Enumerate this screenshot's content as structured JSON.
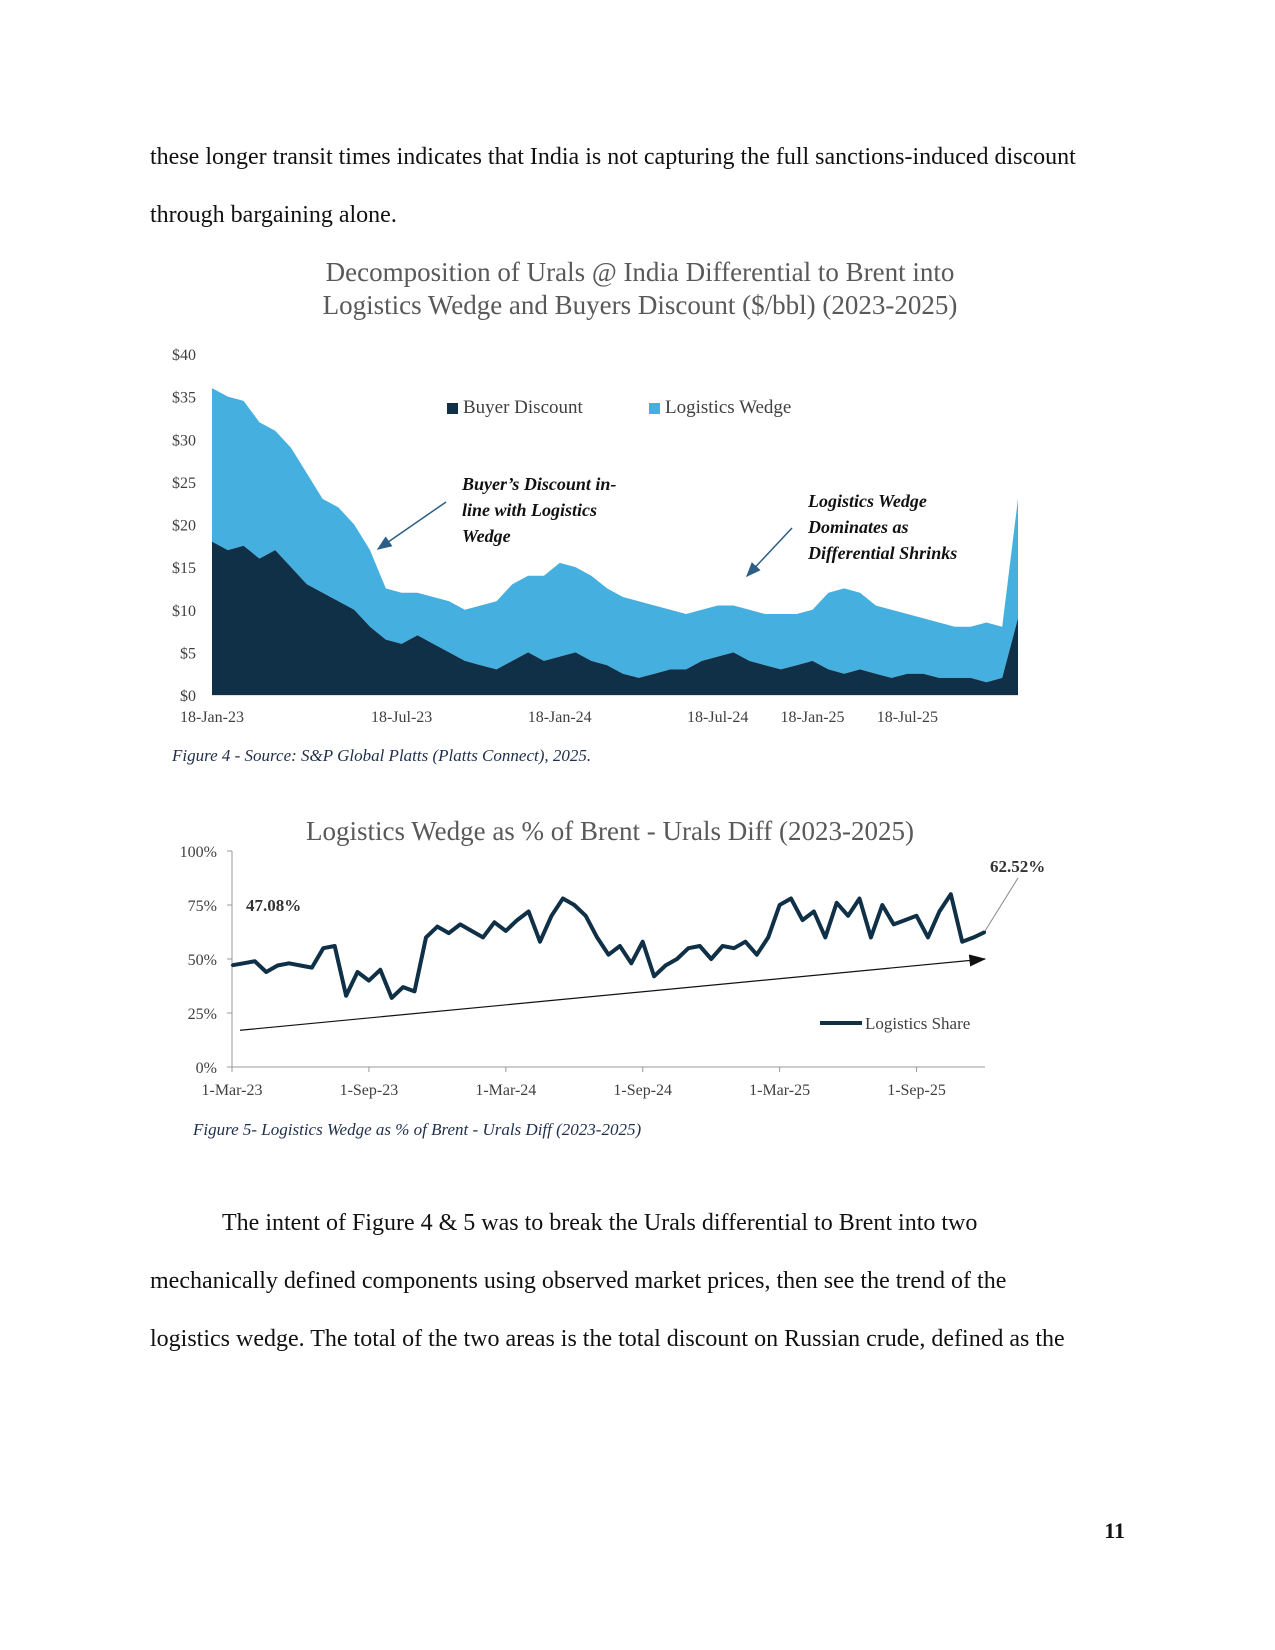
{
  "body_text_top": [
    "these longer transit times indicates that India is not capturing the full sanctions-induced discount",
    "through bargaining alone."
  ],
  "body_text_bottom": [
    "The intent of Figure 4 & 5 was to break the Urals differential to Brent into two",
    "mechanically defined components using observed market prices, then see the trend of the",
    "logistics wedge. The total of the two areas is the total discount on Russian crude, defined as the"
  ],
  "page_number": "11",
  "figure4": {
    "title_line1": "Decomposition of Urals @ India Differential to Brent into",
    "title_line2": "Logistics Wedge and Buyers Discount ($/bbl) (2023-2025)",
    "caption": "Figure 4 - Source: S&P Global Platts (Platts Connect), 2025.",
    "annotation_left": [
      "Buyer’s Discount in-",
      "line with Logistics",
      "Wedge"
    ],
    "annotation_right": [
      "Logistics Wedge",
      "Dominates as",
      "Differential Shrinks"
    ]
  },
  "figure5": {
    "title": "Logistics Wedge as % of Brent - Urals Diff (2023-2025)",
    "caption": "Figure 5- Logistics Wedge as % of Brent - Urals Diff (2023-2025)",
    "start_label": "47.08%",
    "end_label": "62.52%"
  },
  "colors": {
    "buyer_discount": "#0f3046",
    "logistics_wedge": "#45b0e0",
    "line": "#0f3046"
  },
  "chart_data": [
    {
      "type": "area",
      "stacked": true,
      "title": "Decomposition of Urals @ India Differential to Brent into Logistics Wedge and Buyers Discount ($/bbl) (2023-2025)",
      "xlabel": "",
      "ylabel": "",
      "x": [
        "18-Jan-23",
        "1-Feb-23",
        "15-Feb-23",
        "1-Mar-23",
        "15-Mar-23",
        "1-Apr-23",
        "15-Apr-23",
        "1-May-23",
        "15-May-23",
        "1-Jun-23",
        "15-Jun-23",
        "1-Jul-23",
        "18-Jul-23",
        "1-Aug-23",
        "15-Aug-23",
        "1-Sep-23",
        "15-Sep-23",
        "1-Oct-23",
        "15-Oct-23",
        "1-Nov-23",
        "15-Nov-23",
        "1-Dec-23",
        "18-Jan-24",
        "1-Feb-24",
        "15-Feb-24",
        "1-Mar-24",
        "15-Mar-24",
        "1-Apr-24",
        "15-Apr-24",
        "1-May-24",
        "15-May-24",
        "1-Jun-24",
        "18-Jul-24",
        "1-Aug-24",
        "1-Sep-24",
        "1-Oct-24",
        "1-Nov-24",
        "1-Dec-24",
        "18-Jan-25",
        "1-Feb-25",
        "1-Mar-25",
        "1-Apr-25",
        "1-May-25",
        "1-Jun-25",
        "18-Jul-25",
        "1-Aug-25",
        "1-Sep-25",
        "1-Oct-25",
        "1-Nov-25",
        "15-Nov-25",
        "1-Dec-25",
        "15-Dec-25"
      ],
      "series": [
        {
          "name": "Buyer Discount",
          "values": [
            18,
            17,
            17.5,
            16,
            17,
            15,
            13,
            12,
            11,
            10,
            8,
            6.5,
            6,
            7,
            6,
            5,
            4,
            3.5,
            3,
            4,
            5,
            4,
            4.5,
            5,
            4,
            3.5,
            2.5,
            2,
            2.5,
            3,
            3,
            4,
            4.5,
            5,
            4,
            3.5,
            3,
            3.5,
            4,
            3,
            2.5,
            3,
            2.5,
            2,
            2.5,
            2.5,
            2,
            2,
            2,
            1.5,
            2,
            9
          ]
        },
        {
          "name": "Logistics Wedge",
          "values": [
            18,
            18,
            17,
            16,
            14,
            14,
            13,
            11,
            11,
            10,
            9,
            6,
            6,
            5,
            5.5,
            6,
            6,
            7,
            8,
            9,
            9,
            10,
            11,
            10,
            10,
            9,
            9,
            9,
            8,
            7,
            6.5,
            6,
            6,
            5.5,
            6,
            6,
            6.5,
            6,
            6,
            9,
            10,
            9,
            8,
            8,
            7,
            6.5,
            6.5,
            6,
            6,
            7,
            6,
            14
          ]
        }
      ],
      "y_ticks": [
        "$0",
        "$5",
        "$10",
        "$15",
        "$20",
        "$25",
        "$30",
        "$35",
        "$40"
      ],
      "x_ticks": [
        "18-Jan-23",
        "18-Jul-23",
        "18-Jan-24",
        "18-Jul-24",
        "18-Jan-25",
        "18-Jul-25"
      ],
      "ylim": [
        0,
        40
      ],
      "legend": "top"
    },
    {
      "type": "line",
      "title": "Logistics Wedge as % of Brent - Urals Diff (2023-2025)",
      "xlabel": "",
      "ylabel": "",
      "x": [
        "1-Mar-23",
        "15-Mar-23",
        "1-Apr-23",
        "15-Apr-23",
        "1-May-23",
        "15-May-23",
        "1-Jun-23",
        "15-Jun-23",
        "1-Jul-23",
        "15-Jul-23",
        "1-Aug-23",
        "15-Aug-23",
        "1-Sep-23",
        "15-Sep-23",
        "1-Oct-23",
        "15-Oct-23",
        "1-Nov-23",
        "15-Nov-23",
        "1-Dec-23",
        "15-Dec-23",
        "1-Jan-24",
        "15-Jan-24",
        "1-Feb-24",
        "15-Feb-24",
        "1-Mar-24",
        "15-Mar-24",
        "1-Apr-24",
        "15-Apr-24",
        "1-May-24",
        "15-May-24",
        "1-Jun-24",
        "15-Jun-24",
        "1-Jul-24",
        "15-Jul-24",
        "1-Aug-24",
        "15-Aug-24",
        "1-Sep-24",
        "15-Sep-24",
        "1-Oct-24",
        "15-Oct-24",
        "1-Nov-24",
        "15-Nov-24",
        "1-Dec-24",
        "15-Dec-24",
        "1-Jan-25",
        "15-Jan-25",
        "1-Feb-25",
        "15-Feb-25",
        "1-Mar-25",
        "15-Mar-25",
        "1-Apr-25",
        "15-Apr-25",
        "1-May-25",
        "15-May-25",
        "1-Jun-25",
        "15-Jun-25",
        "1-Jul-25",
        "15-Jul-25",
        "1-Aug-25",
        "15-Aug-25",
        "1-Sep-25",
        "15-Sep-25",
        "1-Oct-25",
        "15-Oct-25",
        "1-Nov-25",
        "15-Nov-25",
        "1-Dec-25"
      ],
      "series": [
        {
          "name": "Logistics Share",
          "values": [
            47.08,
            48,
            49,
            44,
            47,
            48,
            47,
            46,
            55,
            56,
            33,
            44,
            40,
            45,
            32,
            37,
            35,
            60,
            65,
            62,
            66,
            63,
            60,
            67,
            63,
            68,
            72,
            58,
            70,
            78,
            75,
            70,
            60,
            52,
            56,
            48,
            58,
            42,
            47,
            50,
            55,
            56,
            50,
            56,
            55,
            58,
            52,
            60,
            75,
            78,
            68,
            72,
            60,
            76,
            70,
            78,
            60,
            75,
            66,
            68,
            70,
            60,
            72,
            80,
            58,
            60,
            62.52
          ]
        }
      ],
      "y_ticks": [
        "0%",
        "25%",
        "50%",
        "75%",
        "100%"
      ],
      "x_ticks": [
        "1-Mar-23",
        "1-Sep-23",
        "1-Mar-24",
        "1-Sep-24",
        "1-Mar-25",
        "1-Sep-25"
      ],
      "ylim": [
        0,
        100
      ],
      "legend": "bottom-right",
      "trendline": {
        "start": 17,
        "end": 50
      }
    }
  ]
}
